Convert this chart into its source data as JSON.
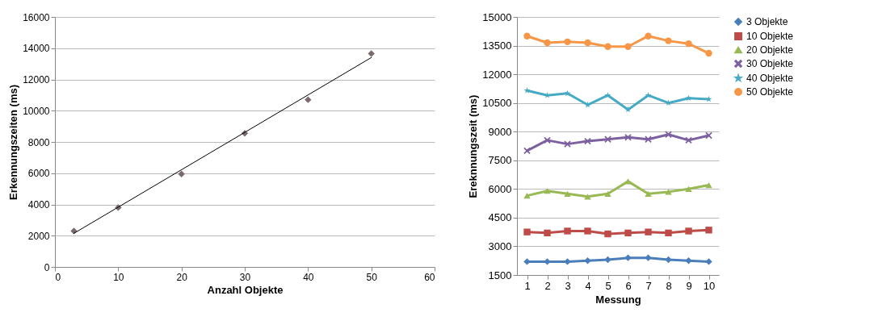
{
  "chart_data": [
    {
      "type": "scatter",
      "xlabel": "Anzahl Objekte",
      "ylabel": "Erkennungszeiten (ms)",
      "x": [
        3,
        10,
        20,
        30,
        40,
        50
      ],
      "xlim": [
        0,
        60
      ],
      "xticks": [
        0,
        10,
        20,
        30,
        40,
        50,
        60
      ],
      "ylim": [
        0,
        16000
      ],
      "yticks": [
        0,
        2000,
        4000,
        6000,
        8000,
        10000,
        12000,
        14000,
        16000
      ],
      "grid": "y",
      "legend": false,
      "marker": "diamond",
      "series": [
        {
          "color": "#7a6a6c",
          "values": [
            2300,
            3800,
            5950,
            8550,
            10700,
            13650
          ]
        },
        {
          "type": "line",
          "marker": "none",
          "color": "#000000",
          "x": [
            3,
            50
          ],
          "values": [
            2150,
            13400
          ]
        }
      ]
    },
    {
      "type": "line",
      "xlabel": "Messung",
      "ylabel": "Ereknnungszeit (ms)",
      "categories": [
        "1",
        "2",
        "3",
        "4",
        "5",
        "6",
        "7",
        "8",
        "9",
        "10"
      ],
      "ylim": [
        1500,
        15000
      ],
      "yticks": [
        1500,
        3000,
        4500,
        6000,
        7500,
        9000,
        10500,
        12000,
        13500,
        15000
      ],
      "grid": "y",
      "legend": "right",
      "line_style": "solid",
      "series": [
        {
          "name": "3 Objekte",
          "marker": "diamond",
          "color": "#4a7ebb",
          "values": [
            2200,
            2200,
            2200,
            2250,
            2300,
            2400,
            2400,
            2300,
            2250,
            2200
          ]
        },
        {
          "name": "10 Objekte",
          "marker": "square",
          "color": "#be4b48",
          "values": [
            3750,
            3700,
            3800,
            3800,
            3650,
            3700,
            3750,
            3700,
            3800,
            3850
          ]
        },
        {
          "name": "20 Objekte",
          "marker": "triangle",
          "color": "#98b954",
          "values": [
            5650,
            5900,
            5750,
            5600,
            5750,
            6400,
            5750,
            5850,
            6000,
            6200
          ]
        },
        {
          "name": "30 Objekte",
          "marker": "cross",
          "color": "#7d60a0",
          "values": [
            8000,
            8550,
            8350,
            8500,
            8600,
            8700,
            8600,
            8850,
            8550,
            8800
          ]
        },
        {
          "name": "40 Objekte",
          "marker": "star",
          "color": "#46aac5",
          "values": [
            11150,
            10900,
            11000,
            10400,
            10900,
            10150,
            10900,
            10500,
            10750,
            10700
          ]
        },
        {
          "name": "50 Objekte",
          "marker": "circle",
          "color": "#f79646",
          "values": [
            14000,
            13650,
            13700,
            13650,
            13450,
            13450,
            14000,
            13750,
            13600,
            13100
          ]
        }
      ]
    }
  ]
}
